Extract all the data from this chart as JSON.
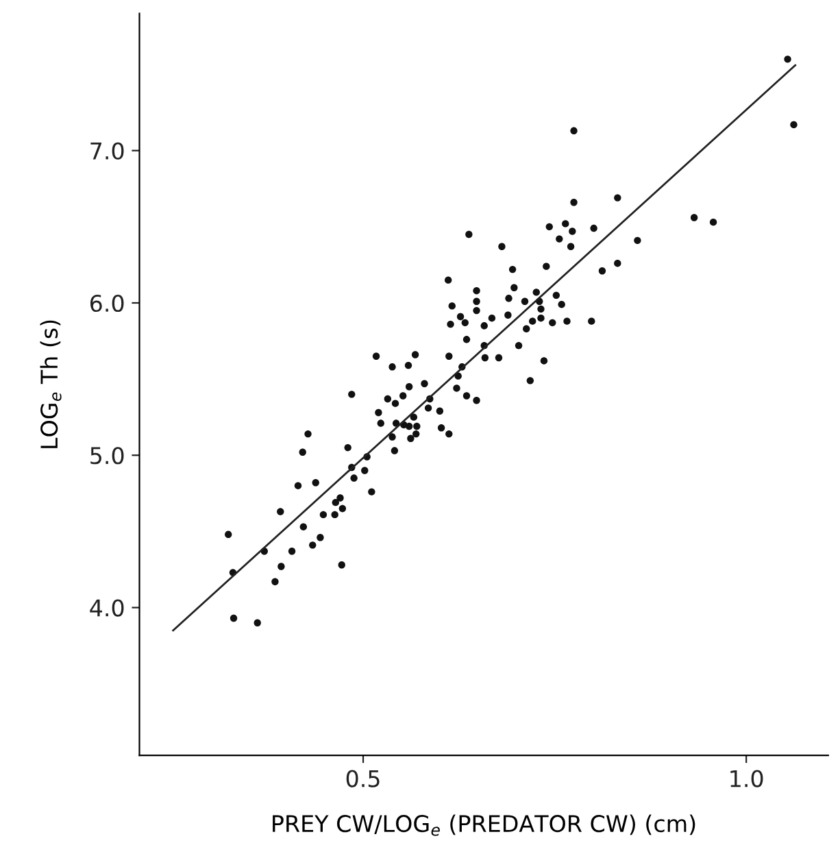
{
  "chart_data": {
    "type": "scatter",
    "xlabel": "PREY CW/LOG$_{e}$ (PREDATOR CW) (cm)",
    "ylabel": "LOG$_{e}$ Th (s)",
    "xlim": [
      0.208,
      1.107
    ],
    "ylim": [
      3.03,
      7.9
    ],
    "xticks": [
      {
        "value": 0.5,
        "label": "0.5"
      },
      {
        "value": 1.0,
        "label": "1.0"
      }
    ],
    "yticks": [
      {
        "value": 4,
        "label": "4.0"
      },
      {
        "value": 5,
        "label": "5.0"
      },
      {
        "value": 6,
        "label": "6.0"
      },
      {
        "value": 7,
        "label": "7.0"
      }
    ],
    "grid": false,
    "marker": "circle",
    "series": [
      {
        "color": "#111111",
        "x": [
          0.324,
          0.33,
          0.331,
          0.362,
          0.371,
          0.385,
          0.392,
          0.393,
          0.407,
          0.415,
          0.421,
          0.422,
          0.428,
          0.434,
          0.438,
          0.444,
          0.448,
          0.463,
          0.464,
          0.47,
          0.473,
          0.472,
          0.48,
          0.485,
          0.485,
          0.488,
          0.502,
          0.505,
          0.511,
          0.517,
          0.52,
          0.523,
          0.532,
          0.538,
          0.538,
          0.541,
          0.542,
          0.543,
          0.552,
          0.553,
          0.559,
          0.56,
          0.56,
          0.562,
          0.566,
          0.568,
          0.569,
          0.57,
          0.58,
          0.585,
          0.587,
          0.6,
          0.602,
          0.611,
          0.612,
          0.612,
          0.614,
          0.616,
          0.622,
          0.624,
          0.627,
          0.629,
          0.633,
          0.635,
          0.635,
          0.638,
          0.648,
          0.648,
          0.648,
          0.648,
          0.658,
          0.658,
          0.659,
          0.668,
          0.677,
          0.681,
          0.69,
          0.689,
          0.695,
          0.697,
          0.703,
          0.711,
          0.713,
          0.718,
          0.721,
          0.726,
          0.73,
          0.732,
          0.732,
          0.736,
          0.739,
          0.743,
          0.747,
          0.752,
          0.756,
          0.759,
          0.764,
          0.766,
          0.771,
          0.773,
          0.775,
          0.775,
          0.798,
          0.801,
          0.812,
          0.832,
          0.832,
          0.858,
          0.932,
          0.957,
          1.054,
          1.062
        ],
        "values": [
          4.48,
          4.23,
          3.93,
          3.9,
          4.37,
          4.17,
          4.63,
          4.27,
          4.37,
          4.8,
          5.02,
          4.53,
          5.14,
          4.41,
          4.82,
          4.46,
          4.61,
          4.61,
          4.69,
          4.72,
          4.65,
          4.28,
          5.05,
          5.4,
          4.92,
          4.85,
          4.9,
          4.99,
          4.76,
          5.65,
          5.28,
          5.21,
          5.37,
          5.58,
          5.12,
          5.03,
          5.34,
          5.21,
          5.39,
          5.2,
          5.59,
          5.45,
          5.19,
          5.11,
          5.25,
          5.66,
          5.14,
          5.19,
          5.47,
          5.31,
          5.37,
          5.29,
          5.18,
          6.15,
          5.65,
          5.14,
          5.86,
          5.98,
          5.44,
          5.52,
          5.91,
          5.58,
          5.87,
          5.76,
          5.39,
          6.45,
          6.08,
          6.01,
          5.95,
          5.36,
          5.85,
          5.72,
          5.64,
          5.9,
          5.64,
          6.37,
          6.03,
          5.92,
          6.22,
          6.1,
          5.72,
          6.01,
          5.83,
          5.49,
          5.88,
          6.07,
          6.01,
          5.96,
          5.9,
          5.62,
          6.24,
          6.5,
          5.87,
          6.05,
          6.42,
          5.99,
          6.52,
          5.88,
          6.37,
          6.47,
          6.66,
          7.13,
          5.88,
          6.49,
          6.21,
          6.26,
          6.69,
          6.41,
          6.56,
          6.53,
          7.6,
          7.17
        ]
      },
      {
        "type": "line",
        "color": "#222222",
        "marker": "none",
        "line_style": "solid",
        "x": [
          0.252,
          1.064
        ],
        "values": [
          3.85,
          7.56
        ]
      }
    ]
  }
}
